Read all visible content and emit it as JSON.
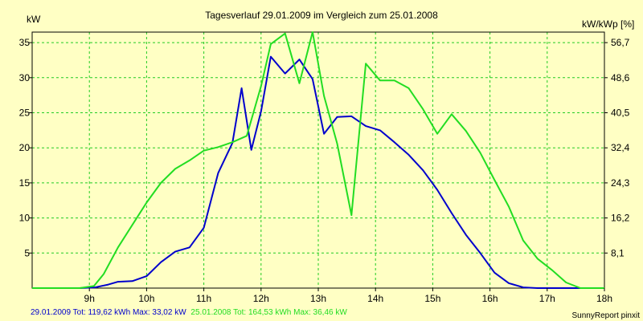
{
  "chart_data": {
    "type": "line",
    "title": "Tagesverlauf 29.01.2009 im Vergleich zum 25.01.2008",
    "ylabel_left": "kW",
    "ylabel_right": "kW/kWp [%]",
    "xlim": [
      8.0,
      18.0
    ],
    "ylim": [
      0,
      36.5
    ],
    "x_ticks": [
      9,
      10,
      11,
      12,
      13,
      14,
      15,
      16,
      17,
      18
    ],
    "x_tick_labels": [
      "9h",
      "10h",
      "11h",
      "12h",
      "13h",
      "14h",
      "15h",
      "16h",
      "17h",
      "18h"
    ],
    "y_ticks": [
      5,
      10,
      15,
      20,
      25,
      30,
      35
    ],
    "y_tick_labels": [
      "5",
      "10",
      "15",
      "20",
      "25",
      "30",
      "35"
    ],
    "y2_ticks": [
      5,
      10,
      15,
      20,
      25,
      30,
      35
    ],
    "y2_tick_labels": [
      "8,1",
      "16,2",
      "24,3",
      "32,4",
      "40,5",
      "48,6",
      "56,7"
    ],
    "grid": true,
    "colors": {
      "background": "#FFFFC4",
      "plot_bg": "#FFFFC4",
      "grid": "#22CC22",
      "frame": "#000000"
    },
    "series": [
      {
        "color": "#0000CC",
        "x": [
          8.0,
          8.5,
          8.83,
          9.1,
          9.33,
          9.5,
          9.75,
          10.0,
          10.25,
          10.5,
          10.75,
          11.0,
          11.25,
          11.5,
          11.66,
          11.83,
          12.0,
          12.17,
          12.42,
          12.67,
          12.9,
          13.1,
          13.33,
          13.58,
          13.83,
          14.08,
          14.33,
          14.58,
          14.83,
          15.08,
          15.33,
          15.58,
          15.83,
          16.08,
          16.33,
          16.58,
          16.83,
          17.0,
          17.5,
          18.0
        ],
        "values": [
          0,
          0,
          0,
          0.1,
          0.5,
          0.9,
          1.0,
          1.7,
          3.7,
          5.2,
          5.8,
          8.6,
          16.4,
          20.7,
          28.5,
          19.7,
          25.2,
          33.0,
          30.6,
          32.6,
          29.8,
          22.0,
          24.4,
          24.5,
          23.1,
          22.5,
          20.8,
          19.0,
          16.8,
          14.0,
          10.7,
          7.6,
          5.0,
          2.2,
          0.7,
          0.1,
          0,
          0,
          0,
          0
        ]
      },
      {
        "color": "#22DD22",
        "x": [
          8.0,
          8.5,
          8.83,
          9.08,
          9.25,
          9.5,
          9.75,
          10.0,
          10.25,
          10.5,
          10.75,
          11.0,
          11.25,
          11.5,
          11.75,
          12.0,
          12.17,
          12.42,
          12.67,
          12.9,
          13.1,
          13.33,
          13.58,
          13.83,
          14.08,
          14.33,
          14.58,
          14.83,
          15.08,
          15.33,
          15.58,
          15.83,
          16.08,
          16.33,
          16.58,
          16.83,
          17.08,
          17.33,
          17.58,
          17.83,
          18.0
        ],
        "values": [
          0,
          0,
          0,
          0.3,
          2.0,
          5.8,
          9.0,
          12.2,
          15.0,
          17.0,
          18.2,
          19.6,
          20.1,
          20.8,
          21.7,
          28.8,
          34.8,
          36.3,
          29.2,
          36.5,
          27.4,
          20.6,
          10.4,
          32.0,
          29.6,
          29.6,
          28.5,
          25.5,
          22.0,
          24.8,
          22.4,
          19.3,
          15.4,
          11.6,
          6.8,
          4.2,
          2.6,
          0.8,
          0,
          0,
          0
        ]
      }
    ],
    "footer_left": [
      {
        "text": "29.01.2009 Tot: 119,62 kWh Max: 33,02 kW",
        "color": "#0000CC"
      },
      {
        "text": "25.01.2008 Tot: 164,53 kWh Max: 36,46 kW",
        "color": "#22DD22"
      }
    ],
    "footer_right": "SunnyReport pinxit"
  }
}
